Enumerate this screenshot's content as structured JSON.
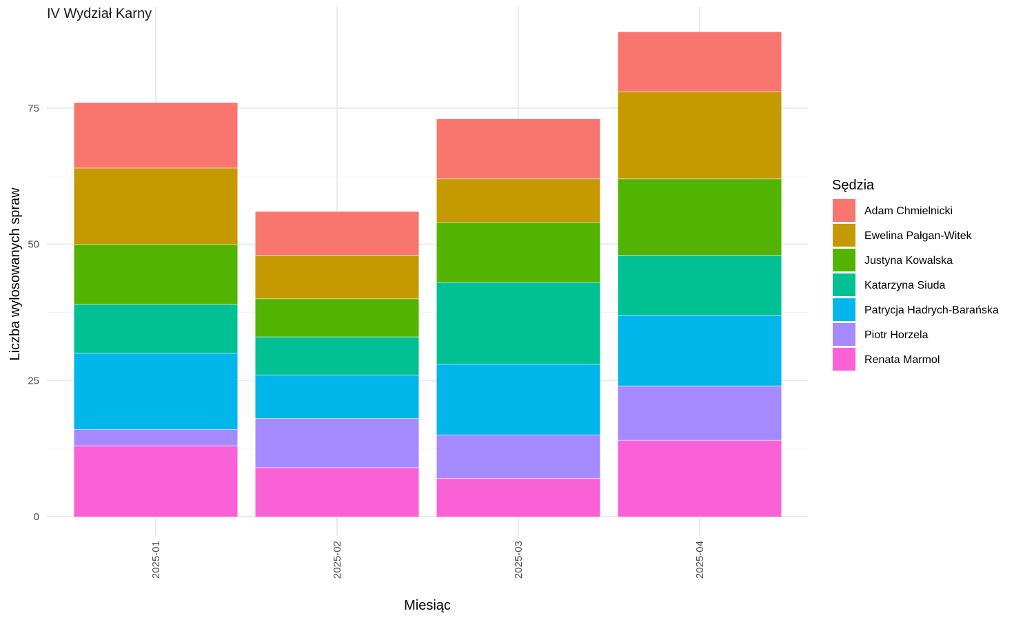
{
  "chart_data": {
    "type": "bar",
    "stacked": true,
    "facet_label": "IV Wydział Karny",
    "xlabel": "Miesiąc",
    "ylabel": "Liczba wylosowanych spraw",
    "legend_title": "Sędzia",
    "legend_position": "right",
    "grid": true,
    "ylim": [
      0,
      92
    ],
    "yticks": [
      0,
      25,
      50,
      75
    ],
    "categories": [
      "2025-01",
      "2025-02",
      "2025-03",
      "2025-04"
    ],
    "series": [
      {
        "name": "Renata Marmol",
        "color": "#FB61D7",
        "values": [
          13,
          9,
          7,
          14
        ]
      },
      {
        "name": "Piotr Horzela",
        "color": "#A58AFF",
        "values": [
          3,
          9,
          8,
          10
        ]
      },
      {
        "name": "Patrycja Hadrych-Barańska",
        "color": "#00B6EB",
        "values": [
          14,
          8,
          13,
          13
        ]
      },
      {
        "name": "Katarzyna Siuda",
        "color": "#00C094",
        "values": [
          9,
          7,
          15,
          11
        ]
      },
      {
        "name": "Justyna Kowalska",
        "color": "#53B400",
        "values": [
          11,
          7,
          11,
          14
        ]
      },
      {
        "name": "Ewelina Pałgan-Witek",
        "color": "#C49A00",
        "values": [
          14,
          8,
          8,
          16
        ]
      },
      {
        "name": "Adam Chmielnicki",
        "color": "#F8766D",
        "values": [
          12,
          8,
          11,
          11
        ]
      }
    ],
    "legend_order": [
      "Adam Chmielnicki",
      "Ewelina Pałgan-Witek",
      "Justyna Kowalska",
      "Katarzyna Siuda",
      "Patrycja Hadrych-Barańska",
      "Piotr Horzela",
      "Renata Marmol"
    ]
  }
}
